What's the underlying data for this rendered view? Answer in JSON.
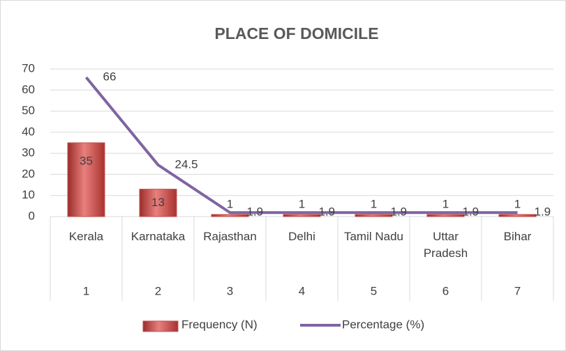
{
  "chart_data": {
    "type": "bar",
    "title": "PLACE OF DOMICILE",
    "categories": [
      "Kerala",
      "Karnataka",
      "Rajasthan",
      "Delhi",
      "Tamil Nadu",
      "Uttar Pradesh",
      "Bihar"
    ],
    "category_numbers": [
      1,
      2,
      3,
      4,
      5,
      6,
      7
    ],
    "series": [
      {
        "name": "Frequency (N)",
        "type": "bar",
        "color": "#c0504d",
        "values": [
          35,
          13,
          1,
          1,
          1,
          1,
          1
        ]
      },
      {
        "name": "Percentage (%)",
        "type": "line",
        "color": "#8064a2",
        "values": [
          66,
          24.5,
          1.9,
          1.9,
          1.9,
          1.9,
          1.9
        ]
      }
    ],
    "ylim": [
      0,
      70
    ],
    "yticks": [
      0,
      10,
      20,
      30,
      40,
      50,
      60,
      70
    ],
    "grid": true,
    "legend": "bottom"
  }
}
